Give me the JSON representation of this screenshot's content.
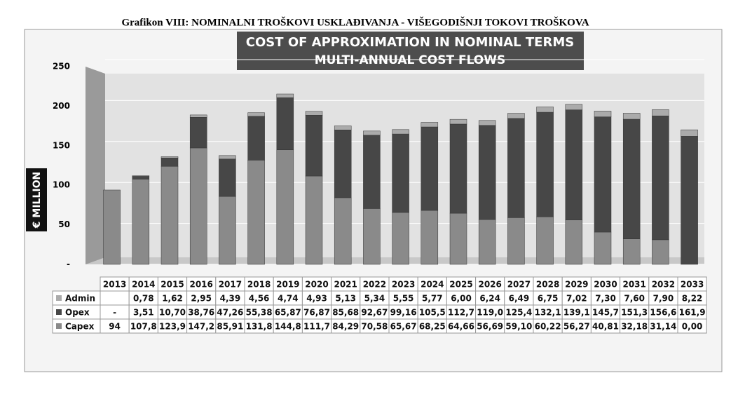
{
  "heading": "Grafikon VIII: NOMINALNI TROŠKOVI USKLAĐIVANJA - VIŠEGODIŠNJI TOKOVI TROŠKOVA",
  "chart_data": {
    "type": "stacked-bar",
    "title": "COST OF APPROXIMATION IN NOMINAL TERMS",
    "subtitle": "MULTI-ANNUAL COST FLOWS",
    "y_label": "€ MILLION",
    "categories": [
      "2013",
      "2014",
      "2015",
      "2016",
      "2017",
      "2018",
      "2019",
      "2020",
      "2021",
      "2022",
      "2023",
      "2024",
      "2025",
      "2026",
      "2027",
      "2028",
      "2029",
      "2030",
      "2031",
      "2032",
      "2033"
    ],
    "ylim": [
      0,
      250
    ],
    "yticks": [
      {
        "value": 0,
        "label": "-"
      },
      50,
      100,
      150,
      200,
      250
    ],
    "grid": true,
    "series": [
      {
        "name": "Admin",
        "color": "#ababab",
        "values": [
          null,
          0.78,
          1.62,
          2.95,
          4.39,
          4.56,
          4.74,
          4.93,
          5.13,
          5.34,
          5.55,
          5.77,
          6.0,
          6.24,
          6.49,
          6.75,
          7.02,
          7.3,
          7.6,
          7.9,
          8.22
        ],
        "value_labels": [
          null,
          "0,78",
          "1,62",
          "2,95",
          "4,39",
          "4,56",
          "4,74",
          "4,93",
          "5,13",
          "5,34",
          "5,55",
          "5,77",
          "6,00",
          "6,24",
          "6,49",
          "6,75",
          "7,02",
          "7,30",
          "7,60",
          "7,90",
          "8,22"
        ]
      },
      {
        "name": "Opex",
        "color": "#474747",
        "values": [
          null,
          3.51,
          10.7,
          38.76,
          47.26,
          55.38,
          65.87,
          76.87,
          85.68,
          92.67,
          99.16,
          105.5,
          112.7,
          119.0,
          125.4,
          132.1,
          139.1,
          145.7,
          151.3,
          156.6,
          161.9
        ],
        "value_labels": [
          "-",
          "3,51",
          "10,70",
          "38,76",
          "47,26",
          "55,38",
          "65,87",
          "76,87",
          "85,68",
          "92,67",
          "99,16",
          "105,5",
          "112,7",
          "119,0",
          "125,4",
          "132,1",
          "139,1",
          "145,7",
          "151,3",
          "156,6",
          "161,9"
        ]
      },
      {
        "name": "Capex",
        "color": "#8a8a8a",
        "values": [
          94,
          107.8,
          123.9,
          147.2,
          85.91,
          131.8,
          144.8,
          111.7,
          84.29,
          70.58,
          65.67,
          68.25,
          64.66,
          56.69,
          59.1,
          60.22,
          56.27,
          40.81,
          32.18,
          31.14,
          0.0
        ],
        "value_labels": [
          "94",
          "107,8",
          "123,9",
          "147,2",
          "85,91",
          "131,8",
          "144,8",
          "111,7",
          "84,29",
          "70,58",
          "65,67",
          "68,25",
          "64,66",
          "56,69",
          "59,10",
          "60,22",
          "56,27",
          "40,81",
          "32,18",
          "31,14",
          "0,00"
        ]
      }
    ]
  }
}
